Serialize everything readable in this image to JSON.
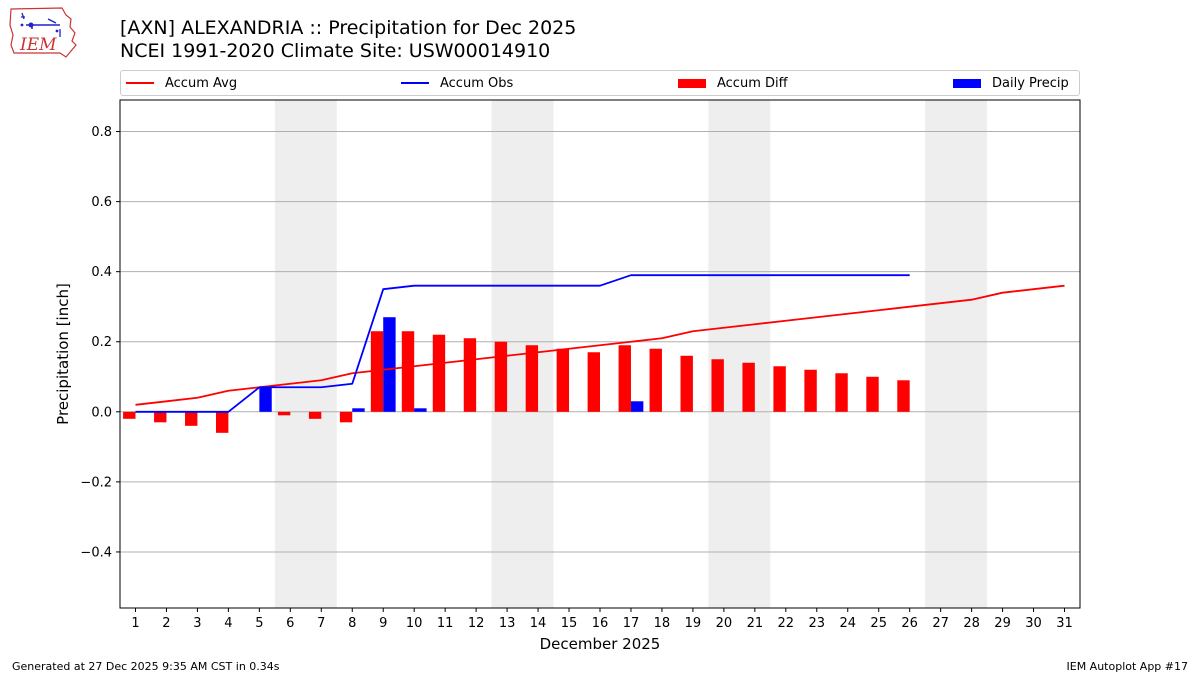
{
  "header": {
    "title_line1": "[AXN] ALEXANDRIA :: Precipitation for Dec 2025",
    "title_line2": "NCEI 1991-2020 Climate Site: USW00014910",
    "logo_text": "IEM"
  },
  "footer": {
    "generated": "Generated at 27 Dec 2025 9:35 AM CST in 0.34s",
    "app": "IEM Autoplot App #17"
  },
  "colors": {
    "accum_avg": "#ff0000",
    "accum_obs": "#0000ff",
    "accum_diff": "#ff0000",
    "daily_precip": "#0000ff",
    "weekend_shade": "#eeeeee",
    "grid": "#b0b0b0"
  },
  "chart_data": {
    "type": "bar",
    "title": "[AXN] ALEXANDRIA :: Precipitation for Dec 2025",
    "subtitle": "NCEI 1991-2020 Climate Site: USW00014910",
    "xlabel": "December 2025",
    "ylabel": "Precipitation [inch]",
    "xlim": [
      0.5,
      31.5
    ],
    "ylim": [
      -0.56,
      0.89
    ],
    "yticks": [
      -0.4,
      -0.2,
      0.0,
      0.2,
      0.4,
      0.6,
      0.8
    ],
    "ytick_labels": [
      "−0.4",
      "−0.2",
      "0.0",
      "0.2",
      "0.4",
      "0.6",
      "0.8"
    ],
    "grid": true,
    "legend_position": "top",
    "categories": [
      1,
      2,
      3,
      4,
      5,
      6,
      7,
      8,
      9,
      10,
      11,
      12,
      13,
      14,
      15,
      16,
      17,
      18,
      19,
      20,
      21,
      22,
      23,
      24,
      25,
      26,
      27,
      28,
      29,
      30,
      31
    ],
    "weekend_shading": [
      [
        6,
        7
      ],
      [
        13,
        14
      ],
      [
        20,
        21
      ],
      [
        27,
        28
      ]
    ],
    "series": [
      {
        "name": "Accum Avg",
        "kind": "line",
        "x": [
          1,
          2,
          3,
          4,
          5,
          6,
          7,
          8,
          9,
          10,
          11,
          12,
          13,
          14,
          15,
          16,
          17,
          18,
          19,
          20,
          21,
          22,
          23,
          24,
          25,
          26,
          27,
          28,
          29,
          30,
          31
        ],
        "values": [
          0.02,
          0.03,
          0.04,
          0.06,
          0.07,
          0.08,
          0.09,
          0.11,
          0.12,
          0.13,
          0.14,
          0.15,
          0.16,
          0.17,
          0.18,
          0.19,
          0.2,
          0.21,
          0.23,
          0.24,
          0.25,
          0.26,
          0.27,
          0.28,
          0.29,
          0.3,
          0.31,
          0.32,
          0.34,
          0.35,
          0.36
        ]
      },
      {
        "name": "Accum Obs",
        "kind": "line",
        "x": [
          1,
          2,
          3,
          4,
          5,
          6,
          7,
          8,
          9,
          10,
          11,
          12,
          13,
          14,
          15,
          16,
          17,
          18,
          19,
          20,
          21,
          22,
          23,
          24,
          25,
          26
        ],
        "values": [
          0.0,
          0.0,
          0.0,
          0.0,
          0.07,
          0.07,
          0.07,
          0.08,
          0.35,
          0.36,
          0.36,
          0.36,
          0.36,
          0.36,
          0.36,
          0.36,
          0.39,
          0.39,
          0.39,
          0.39,
          0.39,
          0.39,
          0.39,
          0.39,
          0.39,
          0.39
        ]
      },
      {
        "name": "Accum Diff",
        "kind": "bar",
        "offset": "left",
        "x": [
          1,
          2,
          3,
          4,
          5,
          6,
          7,
          8,
          9,
          10,
          11,
          12,
          13,
          14,
          15,
          16,
          17,
          18,
          19,
          20,
          21,
          22,
          23,
          24,
          25,
          26
        ],
        "values": [
          -0.02,
          -0.03,
          -0.04,
          -0.06,
          0.0,
          -0.01,
          -0.02,
          -0.03,
          0.23,
          0.23,
          0.22,
          0.21,
          0.2,
          0.19,
          0.18,
          0.17,
          0.19,
          0.18,
          0.16,
          0.15,
          0.14,
          0.13,
          0.12,
          0.11,
          0.1,
          0.09
        ]
      },
      {
        "name": "Daily Precip",
        "kind": "bar",
        "offset": "right",
        "x": [
          5,
          8,
          9,
          10,
          17
        ],
        "values": [
          0.07,
          0.01,
          0.27,
          0.01,
          0.03
        ]
      }
    ]
  }
}
